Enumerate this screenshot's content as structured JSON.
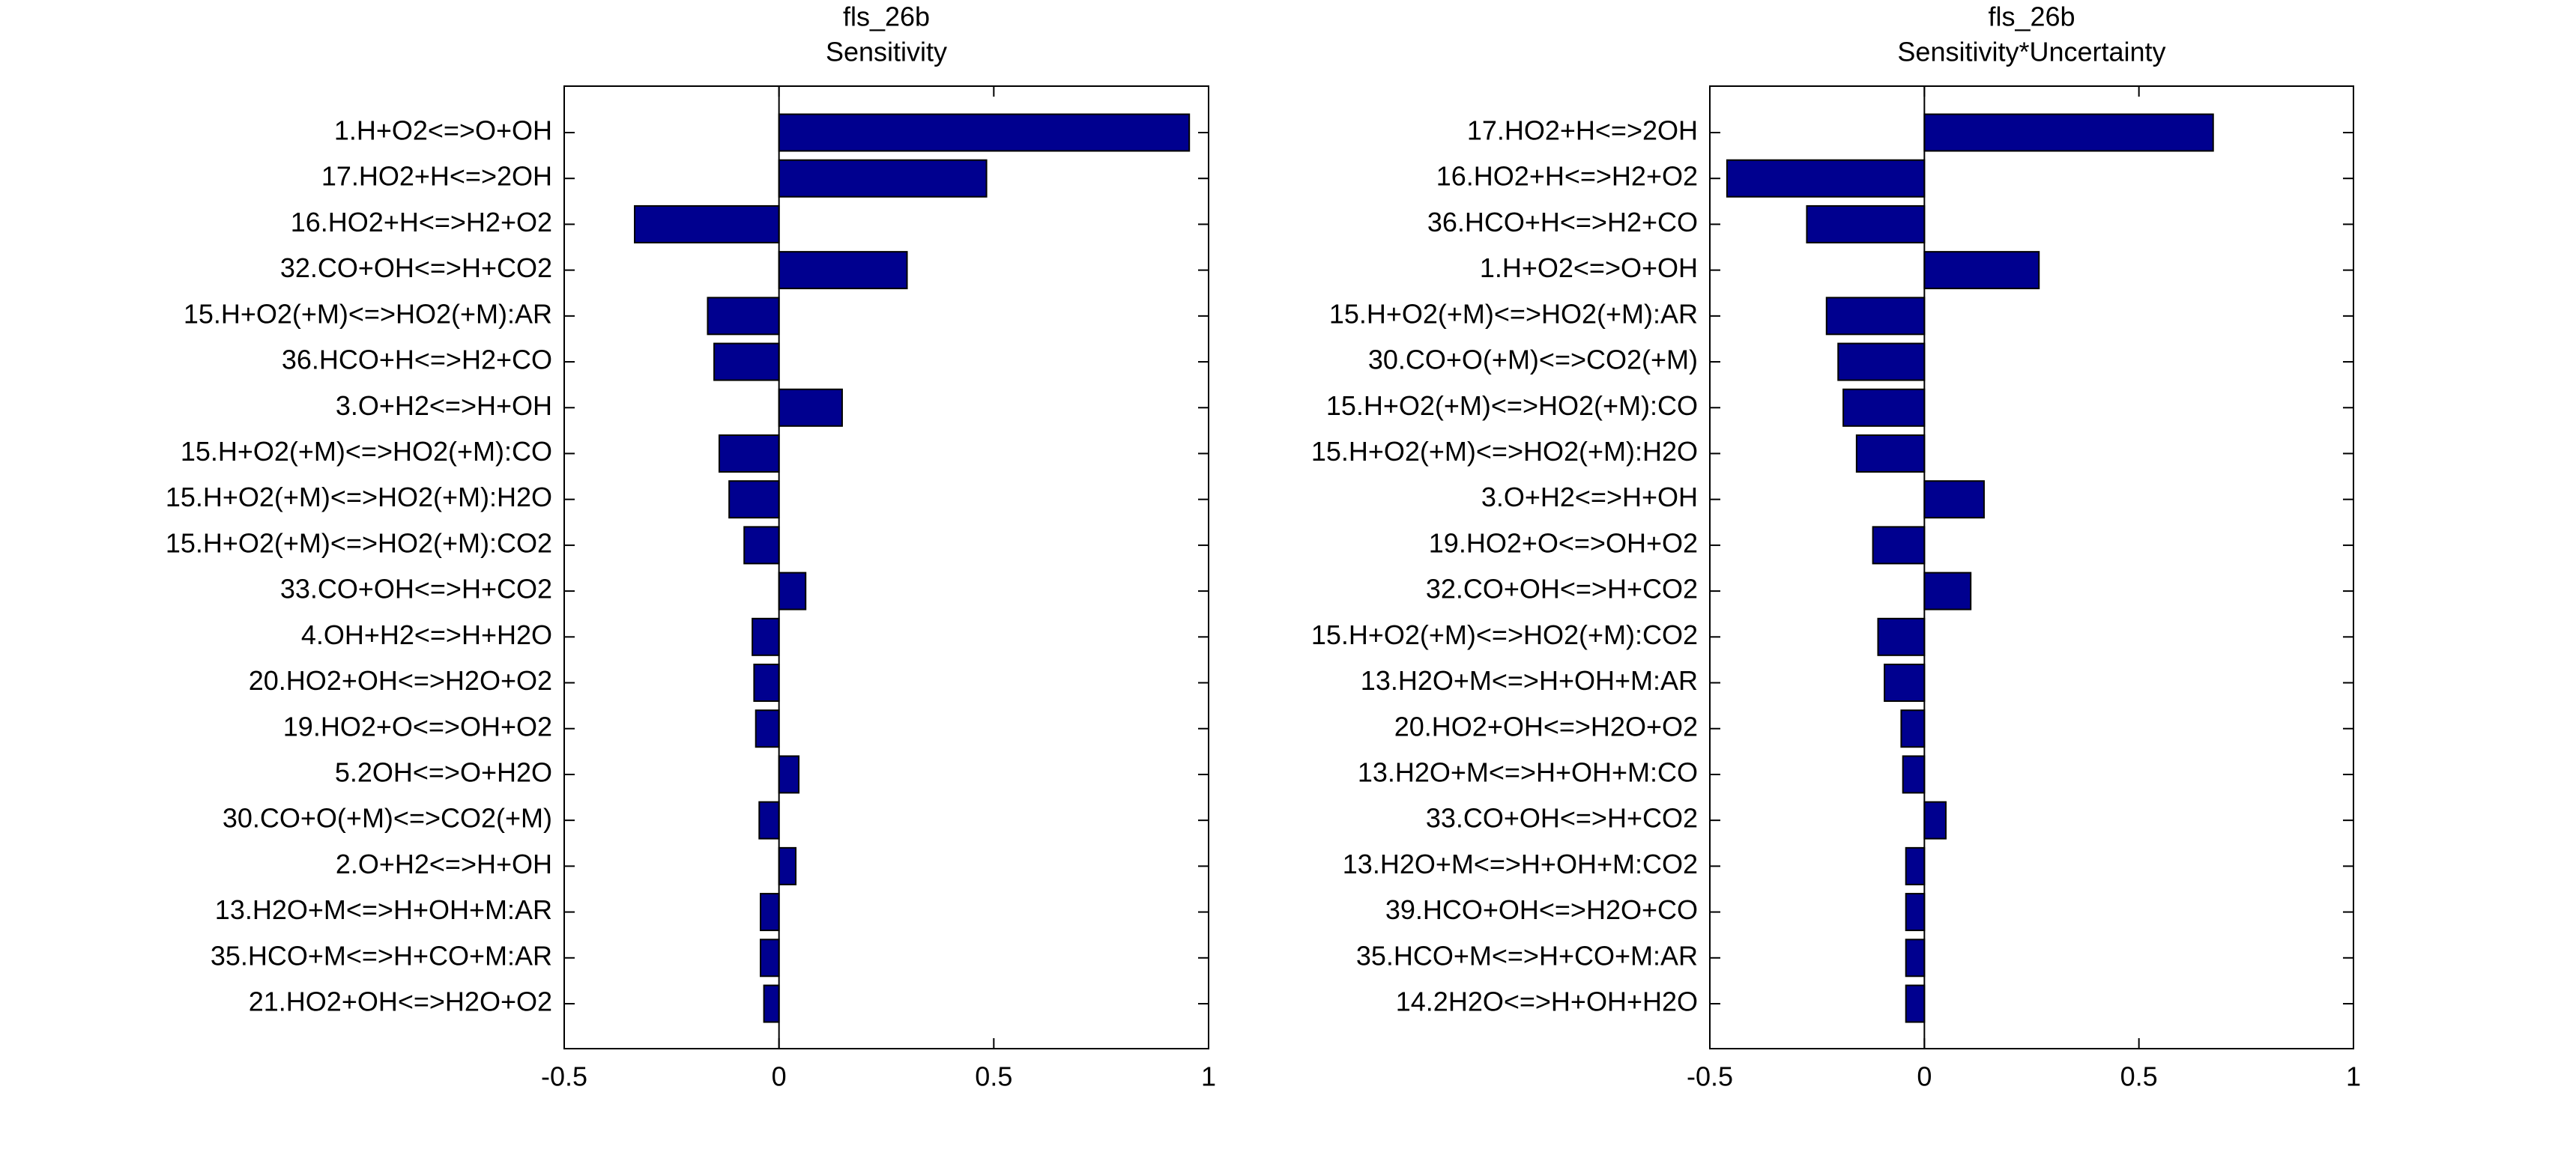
{
  "chart_data": [
    {
      "type": "barh",
      "title": "fls_26b",
      "subtitle": "Sensitivity",
      "categories": [
        "1.H+O2<=>O+OH",
        "17.HO2+H<=>2OH",
        "16.HO2+H<=>H2+O2",
        "32.CO+OH<=>H+CO2",
        "15.H+O2(+M)<=>HO2(+M):AR",
        "36.HCO+H<=>H2+CO",
        "3.O+H2<=>H+OH",
        "15.H+O2(+M)<=>HO2(+M):CO",
        "15.H+O2(+M)<=>HO2(+M):H2O",
        "15.H+O2(+M)<=>HO2(+M):CO2",
        "33.CO+OH<=>H+CO2",
        "4.OH+H2<=>H+H2O",
        "20.HO2+OH<=>H2O+O2",
        "19.HO2+O<=>OH+O2",
        "5.2OH<=>O+H2O",
        "30.CO+O(+M)<=>CO2(+M)",
        "2.O+H2<=>H+OH",
        "13.H2O+M<=>H+OH+M:AR",
        "35.HCO+M<=>H+CO+M:AR",
        "21.HO2+OH<=>H2O+O2"
      ],
      "values": [
        0.955,
        0.483,
        -0.336,
        0.298,
        -0.166,
        -0.151,
        0.147,
        -0.139,
        -0.116,
        -0.081,
        0.062,
        -0.062,
        -0.058,
        -0.054,
        0.046,
        -0.046,
        0.039,
        -0.043,
        -0.043,
        -0.035
      ],
      "color": "#00008f",
      "xlim": [
        -0.5,
        1
      ],
      "xticks": [
        -0.5,
        0,
        0.5,
        1
      ]
    },
    {
      "type": "barh",
      "title": "fls_26b",
      "subtitle": "Sensitivity*Uncertainty",
      "categories": [
        "17.HO2+H<=>2OH",
        "16.HO2+H<=>H2+O2",
        "36.HCO+H<=>H2+CO",
        "1.H+O2<=>O+OH",
        "15.H+O2(+M)<=>HO2(+M):AR",
        "30.CO+O(+M)<=>CO2(+M)",
        "15.H+O2(+M)<=>HO2(+M):CO",
        "15.H+O2(+M)<=>HO2(+M):H2O",
        "3.O+H2<=>H+OH",
        "19.HO2+O<=>OH+O2",
        "32.CO+OH<=>H+CO2",
        "15.H+O2(+M)<=>HO2(+M):CO2",
        "13.H2O+M<=>H+OH+M:AR",
        "20.HO2+OH<=>H2O+O2",
        "13.H2O+M<=>H+OH+M:CO",
        "33.CO+OH<=>H+CO2",
        "13.H2O+M<=>H+OH+M:CO2",
        "39.HCO+OH<=>H2O+CO",
        "35.HCO+M<=>H+CO+M:AR",
        "14.2H2O<=>H+OH+H2O"
      ],
      "values": [
        0.673,
        -0.46,
        -0.274,
        0.267,
        -0.228,
        -0.201,
        -0.189,
        -0.158,
        0.139,
        -0.12,
        0.108,
        -0.108,
        -0.093,
        -0.054,
        -0.05,
        0.05,
        -0.043,
        -0.043,
        -0.043,
        -0.043
      ],
      "color": "#00008f",
      "xlim": [
        -0.5,
        1
      ],
      "xticks": [
        -0.5,
        0,
        0.5,
        1
      ]
    }
  ]
}
